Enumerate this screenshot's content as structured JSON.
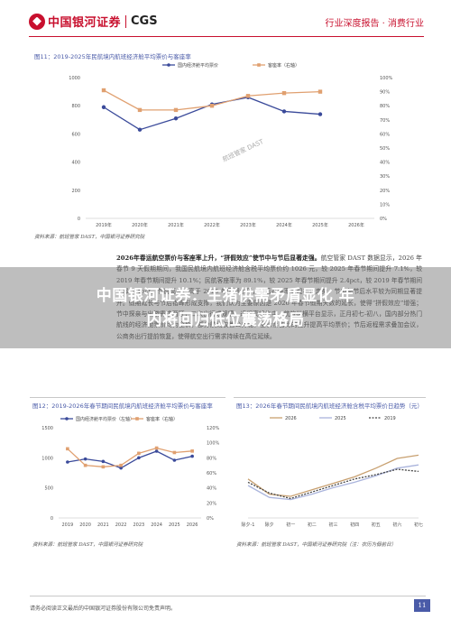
{
  "header": {
    "brand_cn": "中国银河证券",
    "brand_en": "CGS",
    "right": "行业深度报告 · 消费行业"
  },
  "figure11": {
    "caption": "图11：2019-2025年民航境内航班经济舱平均票价与客座率",
    "source": "资料来源：航班管家 DAST，中国银河证券研究院",
    "watermark": "航班管家 DAST"
  },
  "body": {
    "bold": "2026年春运航空票价与客座率上升，“拼假效应”使节中与节后显著走强。",
    "text": "航空管家 DAST 数据显示，2026 年春节 9 天假期期间，我国民航境内航班经济舱含税平均票价约 1026 元，较 2025 年春节期间提升 7.1%，较 2019 年春节期间提升 10.1%；民航客座率为 89.1%，较 2025 年春节期间提升 2.4pct，较 2019 年春节期间下降 3.4pct。节前高点，高于 2025 年同期水平，节后客座率呈现相较走势，节中与节后水平较为同期显著提升。假期延长与节后错峰形成支撑，我们认为主要原因是 2026 年春节假期天数的延长，使得“拼假效应”增强；节中探亲与出游需求两旺，二次出行成规模；返程高峰集中、航旅纵横平台显示，正月初七-初八，国内部分热门航线的经济舱票价均为全价，部分航线仅售公务舱，全价票占比的提升提高平均票价；节后返程需求叠加会议，公商务出行提前恢复，使得航空出行需求持续在高位延续。"
  },
  "banner": {
    "line1": "中国银河证券：生猪供需矛盾显化 年",
    "line2": "内将回归低位震荡格局"
  },
  "figure12": {
    "caption": "图12：2019-2026年春节期间民航境内航班经济舱平均票价与客座率",
    "source": "资料来源：航班管家 DAST，中国银河证券研究院"
  },
  "figure13": {
    "caption": "图13：2026年春节期间民航境内航班经济舱含税平均票价日趋势（元）",
    "source": "资料来源：航班管家 DAST，中国银河证券研究院（注：农历为假前日）"
  },
  "footer": {
    "disclaimer": "请务必阅读正文最后的中国银河证券股份有限公司免责声明。",
    "page": "11"
  },
  "chart_data": [
    {
      "type": "line",
      "categories": [
        "2019年",
        "2020年",
        "2021年",
        "2022年",
        "2023年",
        "2024年",
        "2025年",
        "2026年"
      ],
      "series": [
        {
          "name": "国内经济舱平均票价",
          "values": [
            790,
            630,
            710,
            810,
            860,
            760,
            740,
            null
          ]
        },
        {
          "name": "客座率（右轴）",
          "values": [
            0.91,
            0.77,
            0.77,
            0.8,
            0.87,
            0.89,
            0.9,
            null
          ]
        }
      ],
      "yleft": [
        0,
        1000
      ],
      "yleft_ticks": [
        "0",
        "200",
        "400",
        "600",
        "800",
        "1000"
      ],
      "yright_ticks": [
        "0%",
        "10%",
        "20%",
        "30%",
        "40%",
        "50%",
        "60%",
        "70%",
        "80%",
        "90%",
        "100%"
      ],
      "legend_position": "top"
    },
    {
      "type": "line",
      "categories": [
        "2019",
        "2020",
        "2021",
        "2022",
        "2023",
        "2024",
        "2025",
        "2026"
      ],
      "series": [
        {
          "name": "国内经济舱平均票价（左轴）",
          "values": [
            930,
            980,
            940,
            830,
            1000,
            1110,
            960,
            1026
          ]
        },
        {
          "name": "客座率（右轴）",
          "values": [
            0.92,
            0.7,
            0.68,
            0.7,
            0.86,
            0.93,
            0.87,
            0.89
          ]
        }
      ],
      "yleft": [
        0,
        1500
      ],
      "yleft_ticks": [
        "0",
        "500",
        "1000",
        "1500"
      ],
      "yright_ticks": [
        "0%",
        "20%",
        "40%",
        "60%",
        "80%",
        "100%",
        "120%"
      ],
      "legend_position": "top"
    },
    {
      "type": "line",
      "categories": [
        "除夕-1",
        "除夕",
        "初一",
        "初二",
        "初三",
        "初四",
        "初五",
        "初六",
        "初七"
      ],
      "series": [
        {
          "name": "2026",
          "values": [
            960,
            820,
            800,
            860,
            920,
            980,
            1060,
            1150,
            1180
          ]
        },
        {
          "name": "2025",
          "values": [
            900,
            790,
            770,
            820,
            880,
            930,
            990,
            1060,
            1090
          ]
        },
        {
          "name": "2019",
          "values": [
            930,
            830,
            780,
            840,
            900,
            960,
            1000,
            1050,
            1030
          ]
        }
      ],
      "yleft": [
        600,
        1400
      ],
      "legend_position": "top"
    }
  ]
}
